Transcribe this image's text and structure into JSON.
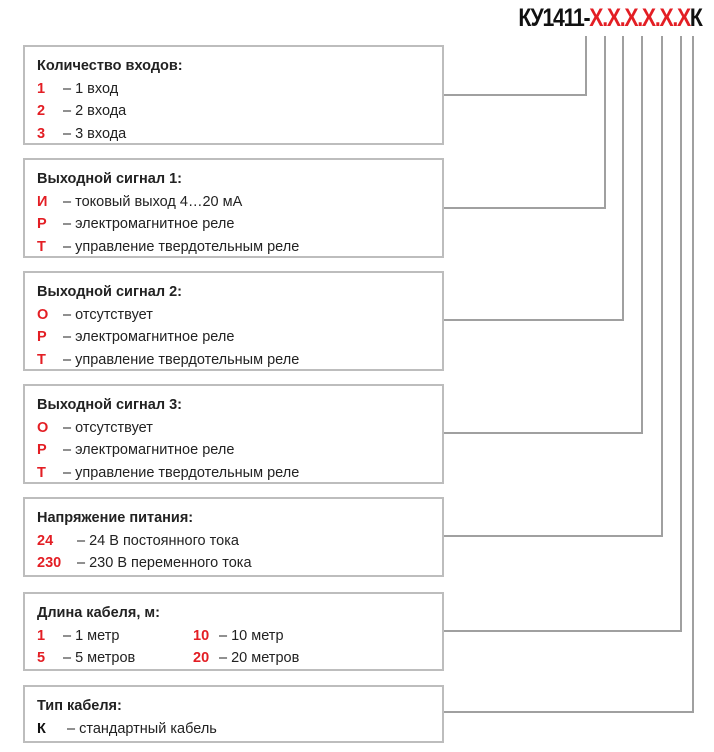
{
  "code": {
    "prefix": "КУ1411-",
    "parts": [
      "X",
      ".X",
      ".X",
      ".X",
      ".X",
      ".X"
    ],
    "suffix": "К"
  },
  "colors": {
    "accent": "#e31e24",
    "line": "#a0a0a0",
    "border": "#bdbdbd"
  },
  "boxes": [
    {
      "title": "Количество входов:",
      "items": [
        {
          "k": "1",
          "v": "– 1 вход"
        },
        {
          "k": "2",
          "v": "– 2 входа"
        },
        {
          "k": "3",
          "v": "– 3 входа"
        }
      ]
    },
    {
      "title": "Выходной сигнал 1:",
      "items": [
        {
          "k": "И",
          "v": "– токовый выход 4…20 мА"
        },
        {
          "k": "Р",
          "v": "– электромагнитное реле"
        },
        {
          "k": "Т",
          "v": "– управление твердотельным реле"
        }
      ]
    },
    {
      "title": "Выходной сигнал 2:",
      "items": [
        {
          "k": "О",
          "v": "– отсутствует"
        },
        {
          "k": "Р",
          "v": "– электромагнитное реле"
        },
        {
          "k": "Т",
          "v": "– управление твердотельным реле"
        }
      ]
    },
    {
      "title": "Выходной сигнал 3:",
      "items": [
        {
          "k": "О",
          "v": "– отсутствует"
        },
        {
          "k": "Р",
          "v": "– электромагнитное реле"
        },
        {
          "k": "Т",
          "v": "– управление твердотельным реле"
        }
      ]
    },
    {
      "title": "Напряжение питания:",
      "items": [
        {
          "k": "24",
          "v": "– 24 В постоянного тока"
        },
        {
          "k": "230",
          "v": "– 230 В переменного тока"
        }
      ]
    },
    {
      "title": "Длина кабеля, м:",
      "items": [
        {
          "k": "1",
          "v": "– 1 метр"
        },
        {
          "k": "5",
          "v": "– 5 метров"
        },
        {
          "k": "10",
          "v": "– 10 метр"
        },
        {
          "k": "20",
          "v": "– 20 метров"
        }
      ]
    },
    {
      "title": "Тип кабеля:",
      "items": [
        {
          "k": "К",
          "v": "– стандартный кабель"
        }
      ]
    }
  ]
}
